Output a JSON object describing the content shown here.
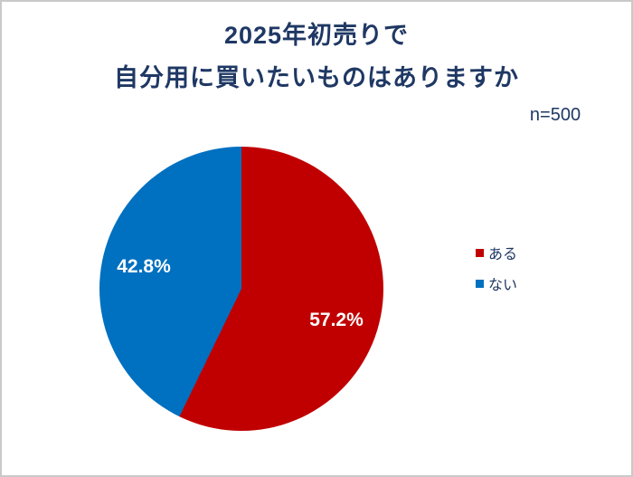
{
  "colors": {
    "text_navy": "#1F3864",
    "slice_red": "#C00000",
    "slice_blue": "#0070C0",
    "label_white": "#FFFFFF",
    "frame_border": "#C9C9C9",
    "background": "#FFFFFF"
  },
  "chart_data": {
    "type": "pie",
    "title": "2025年初売りで 自分用に買いたいものはありますか",
    "title_lines": [
      "2025年初売りで",
      "自分用に買いたいものはありますか"
    ],
    "sample_size_label": "n=500",
    "sample_size": 500,
    "start_angle_deg": 0,
    "direction": "clockwise",
    "legend_position": "right",
    "categories": [
      "ある",
      "ない"
    ],
    "values": [
      57.2,
      42.8
    ],
    "slices": [
      {
        "name": "ある",
        "value": 57.2,
        "label": "57.2%",
        "color": "#C00000"
      },
      {
        "name": "ない",
        "value": 42.8,
        "label": "42.8%",
        "color": "#0070C0"
      }
    ]
  }
}
